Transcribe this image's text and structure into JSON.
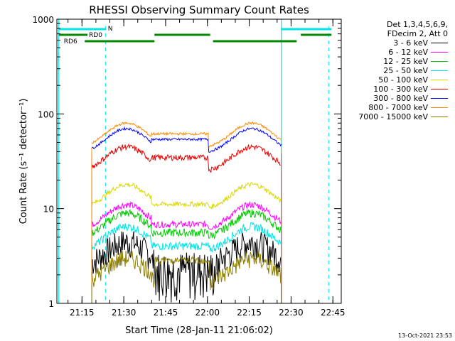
{
  "chart_data": {
    "type": "line",
    "title": "RHESSI Observing Summary Count Rates",
    "xlabel": "Start Time (28-Jan-11 21:06:02)",
    "ylabel": "Count Rate (s⁻¹ detector⁻¹)",
    "yscale": "log",
    "ylim": [
      1,
      1000
    ],
    "xlim_minutes": [
      0,
      102
    ],
    "x_tick_labels": [
      "21:15",
      "21:30",
      "21:45",
      "22:00",
      "22:15",
      "22:30",
      "22:45"
    ],
    "y_tick_labels": [
      "1",
      "10",
      "100",
      "1000"
    ],
    "legend_header": [
      "Det 1,3,4,5,6,9,",
      "FDecim 2, Att 0"
    ],
    "series": [
      {
        "name": "3 - 6 keV",
        "color": "#000000",
        "level": 4.5
      },
      {
        "name": "6 - 12 keV",
        "color": "#ff00ff",
        "level": 11
      },
      {
        "name": "12 - 25 keV",
        "color": "#00cc00",
        "level": 9
      },
      {
        "name": "25 - 50 keV",
        "color": "#00e5e5",
        "level": 6.5
      },
      {
        "name": "50 - 100 keV",
        "color": "#d8d800",
        "level": 18
      },
      {
        "name": "100 - 300 keV",
        "color": "#ee0000",
        "level": 45
      },
      {
        "name": "300 - 800 keV",
        "color": "#0000ff",
        "level": 70
      },
      {
        "name": "800 - 7000 keV",
        "color": "#ff8800",
        "level": 80
      },
      {
        "name": "7000 - 15000 keV",
        "color": "#8b7d00",
        "level": 3
      }
    ],
    "annotations": {
      "attenuator_labels": [
        "N",
        "RD0",
        "RD6"
      ]
    }
  },
  "footer": {
    "timestamp": "13-Oct-2021 23:53"
  }
}
